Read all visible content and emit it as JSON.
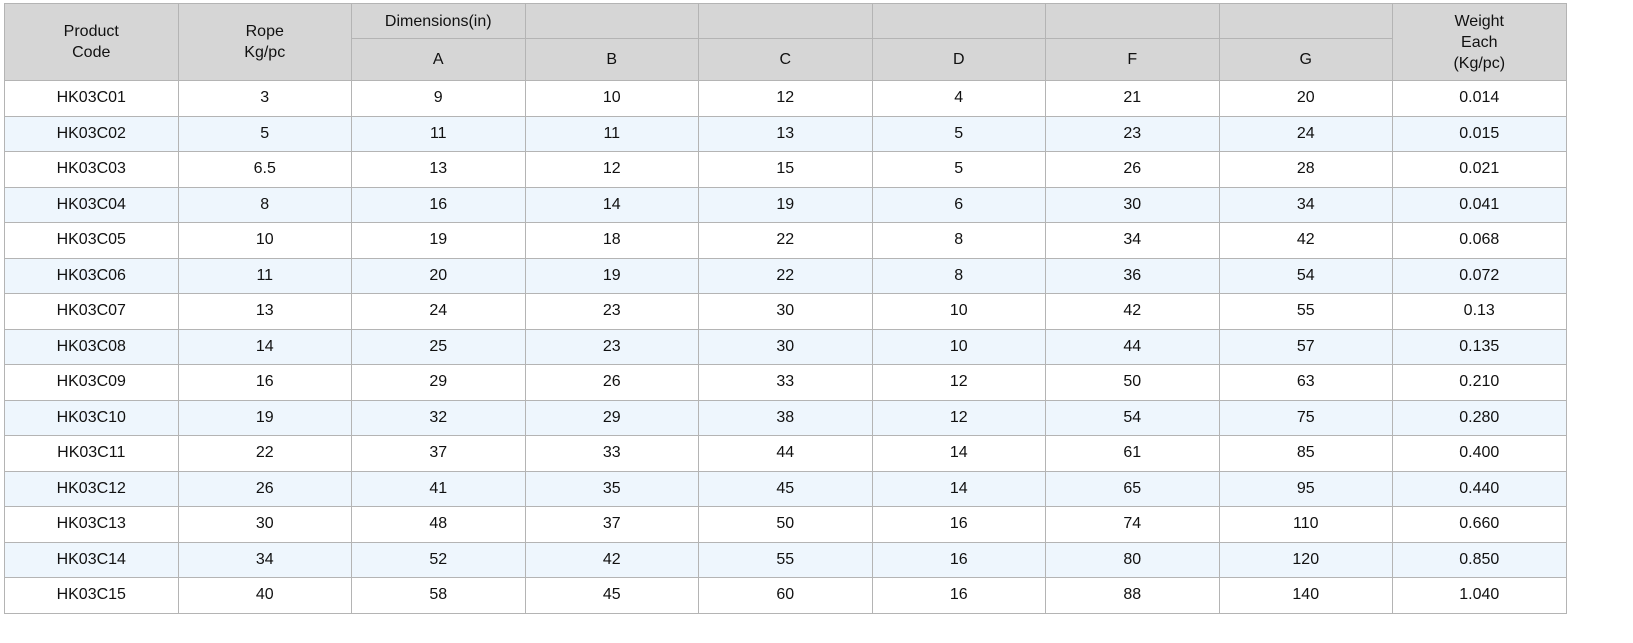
{
  "table": {
    "header": {
      "product_code": "Product\nCode",
      "rope": "Rope\nKg/pc",
      "dimensions": "Dimensions(in)",
      "columns": [
        "A",
        "B",
        "C",
        "D",
        "F",
        "G"
      ],
      "weight": "Weight\nEach\n(Kg/pc)"
    },
    "rows": [
      [
        "HK03C01",
        "3",
        "9",
        "10",
        "12",
        "4",
        "21",
        "20",
        "0.014"
      ],
      [
        "HK03C02",
        "5",
        "11",
        "11",
        "13",
        "5",
        "23",
        "24",
        "0.015"
      ],
      [
        "HK03C03",
        "6.5",
        "13",
        "12",
        "15",
        "5",
        "26",
        "28",
        "0.021"
      ],
      [
        "HK03C04",
        "8",
        "16",
        "14",
        "19",
        "6",
        "30",
        "34",
        "0.041"
      ],
      [
        "HK03C05",
        "10",
        "19",
        "18",
        "22",
        "8",
        "34",
        "42",
        "0.068"
      ],
      [
        "HK03C06",
        "11",
        "20",
        "19",
        "22",
        "8",
        "36",
        "54",
        "0.072"
      ],
      [
        "HK03C07",
        "13",
        "24",
        "23",
        "30",
        "10",
        "42",
        "55",
        "0.13"
      ],
      [
        "HK03C08",
        "14",
        "25",
        "23",
        "30",
        "10",
        "44",
        "57",
        "0.135"
      ],
      [
        "HK03C09",
        "16",
        "29",
        "26",
        "33",
        "12",
        "50",
        "63",
        "0.210"
      ],
      [
        "HK03C10",
        "19",
        "32",
        "29",
        "38",
        "12",
        "54",
        "75",
        "0.280"
      ],
      [
        "HK03C11",
        "22",
        "37",
        "33",
        "44",
        "14",
        "61",
        "85",
        "0.400"
      ],
      [
        "HK03C12",
        "26",
        "41",
        "35",
        "45",
        "14",
        "65",
        "95",
        "0.440"
      ],
      [
        "HK03C13",
        "30",
        "48",
        "37",
        "50",
        "16",
        "74",
        "110",
        "0.660"
      ],
      [
        "HK03C14",
        "34",
        "52",
        "42",
        "55",
        "16",
        "80",
        "120",
        "0.850"
      ],
      [
        "HK03C15",
        "40",
        "58",
        "45",
        "60",
        "16",
        "88",
        "140",
        "1.040"
      ]
    ]
  }
}
